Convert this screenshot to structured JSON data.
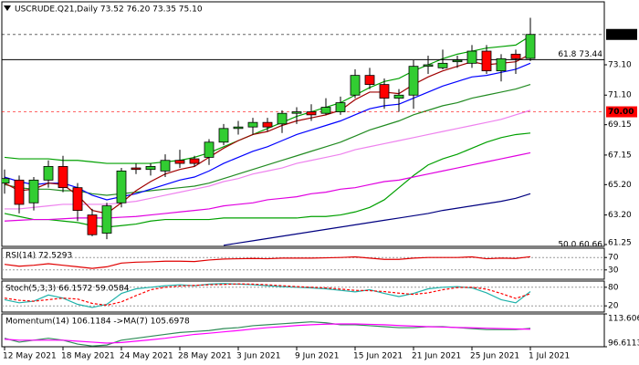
{
  "chart_data": [
    {
      "type": "candlestick",
      "title": "USCRUDE.Q21,Daily  73.52 76.20 73.35 75.10",
      "categories": [
        "12 May 2021",
        null,
        null,
        null,
        "18 May 2021",
        null,
        null,
        null,
        "24 May 2021",
        null,
        null,
        null,
        "28 May 2021",
        null,
        null,
        null,
        "3 Jun 2021",
        null,
        null,
        null,
        "9 Jun 2021",
        null,
        null,
        null,
        "15 Jun 2021",
        null,
        null,
        null,
        "21 Jun 2021",
        null,
        null,
        null,
        "25 Jun 2021",
        null,
        null,
        null,
        "1 Jul 2021"
      ],
      "open": [
        65.3,
        65.5,
        64.0,
        65.5,
        66.4,
        65.0,
        63.2,
        62.0,
        64.0,
        66.3,
        66.2,
        66.1,
        66.8,
        66.9,
        67.0,
        68.0,
        68.9,
        69.0,
        69.3,
        69.2,
        69.9,
        70.0,
        69.9,
        70.0,
        71.1,
        72.4,
        71.8,
        70.9,
        71.1,
        73.0,
        72.9,
        73.3,
        73.2,
        74.0,
        72.7,
        73.8,
        73.52
      ],
      "high": [
        66.2,
        65.8,
        65.7,
        66.8,
        67.1,
        65.3,
        63.6,
        64.0,
        66.3,
        66.6,
        66.6,
        67.2,
        67.5,
        67.1,
        68.2,
        69.2,
        69.4,
        69.6,
        69.6,
        70.1,
        70.3,
        70.5,
        70.9,
        71.0,
        72.8,
        72.9,
        72.2,
        71.5,
        73.4,
        73.7,
        74.1,
        73.7,
        74.4,
        74.4,
        73.8,
        74.1,
        76.2
      ],
      "low": [
        64.6,
        63.3,
        63.5,
        65.0,
        64.7,
        62.8,
        61.8,
        61.6,
        63.7,
        65.9,
        65.8,
        65.7,
        66.3,
        66.4,
        66.5,
        67.8,
        68.5,
        68.5,
        68.7,
        68.6,
        69.2,
        69.4,
        69.8,
        69.8,
        70.9,
        71.5,
        70.2,
        70.0,
        70.2,
        72.5,
        72.8,
        72.9,
        72.9,
        72.5,
        72.0,
        72.5,
        73.35
      ],
      "close": [
        65.6,
        63.9,
        65.5,
        66.4,
        65.0,
        63.5,
        61.9,
        63.8,
        66.1,
        66.2,
        66.4,
        66.8,
        66.6,
        66.6,
        68.0,
        68.9,
        69.0,
        69.3,
        69.0,
        69.9,
        70.0,
        69.8,
        70.3,
        70.6,
        72.4,
        71.8,
        70.9,
        71.1,
        73.0,
        73.1,
        73.2,
        73.4,
        74.0,
        72.7,
        73.5,
        73.5,
        75.1
      ],
      "up_color": "#32cd32",
      "down_color": "#ff0000",
      "series": [
        {
          "color": "#00a000",
          "values": [
            67.0,
            66.9,
            66.9,
            66.9,
            66.8,
            66.8,
            66.7,
            66.6,
            66.6,
            66.6,
            66.6,
            66.7,
            66.8,
            67.0,
            67.3,
            67.7,
            68.1,
            68.5,
            68.9,
            69.3,
            69.7,
            70.0,
            70.3,
            70.6,
            71.1,
            71.6,
            72.0,
            72.2,
            72.7,
            73.1,
            73.5,
            73.8,
            74.0,
            74.2,
            74.3,
            74.4,
            75.0
          ]
        },
        {
          "color": "#00a000",
          "values": [
            63.3,
            63.1,
            62.9,
            62.9,
            62.8,
            62.7,
            62.5,
            62.4,
            62.5,
            62.6,
            62.8,
            62.9,
            62.9,
            62.9,
            62.9,
            63.0,
            63.0,
            63.0,
            63.0,
            63.0,
            63.0,
            63.1,
            63.1,
            63.2,
            63.4,
            63.7,
            64.2,
            65.0,
            65.8,
            66.5,
            66.9,
            67.2,
            67.6,
            68.0,
            68.3,
            68.5,
            68.6
          ]
        },
        {
          "color": "#000080",
          "values": [
            null,
            null,
            null,
            null,
            null,
            null,
            null,
            null,
            null,
            null,
            null,
            null,
            null,
            null,
            null,
            61.2,
            61.35,
            61.5,
            61.65,
            61.8,
            61.95,
            62.1,
            62.25,
            62.4,
            62.55,
            62.7,
            62.85,
            63.0,
            63.15,
            63.3,
            63.5,
            63.65,
            63.8,
            63.95,
            64.1,
            64.3,
            64.6
          ]
        },
        {
          "color": "#e000e0",
          "values": [
            62.8,
            62.85,
            62.9,
            62.9,
            62.95,
            63.0,
            63.0,
            63.0,
            63.05,
            63.1,
            63.2,
            63.3,
            63.4,
            63.5,
            63.6,
            63.8,
            63.9,
            64.0,
            64.2,
            64.3,
            64.4,
            64.6,
            64.7,
            64.9,
            65.0,
            65.2,
            65.4,
            65.5,
            65.7,
            65.9,
            66.1,
            66.3,
            66.5,
            66.7,
            66.9,
            67.1,
            67.3
          ]
        },
        {
          "color": "#ee82ee",
          "values": [
            63.6,
            63.6,
            63.7,
            63.8,
            63.9,
            63.9,
            63.9,
            63.9,
            64.0,
            64.1,
            64.3,
            64.5,
            64.7,
            64.9,
            65.1,
            65.4,
            65.6,
            65.9,
            66.1,
            66.3,
            66.6,
            66.8,
            67.0,
            67.2,
            67.5,
            67.7,
            67.9,
            68.1,
            68.3,
            68.5,
            68.7,
            68.9,
            69.1,
            69.3,
            69.5,
            69.8,
            70.1
          ]
        },
        {
          "color": "#228b22",
          "values": [
            65.2,
            65.0,
            64.9,
            64.9,
            64.8,
            64.8,
            64.6,
            64.5,
            64.6,
            64.7,
            64.8,
            64.9,
            65.0,
            65.1,
            65.3,
            65.6,
            65.9,
            66.2,
            66.5,
            66.8,
            67.1,
            67.4,
            67.7,
            68.0,
            68.4,
            68.8,
            69.1,
            69.4,
            69.8,
            70.1,
            70.4,
            70.6,
            70.9,
            71.1,
            71.3,
            71.5,
            71.8
          ]
        },
        {
          "color": "#0000ff",
          "values": [
            65.7,
            65.4,
            65.2,
            65.3,
            65.3,
            65.0,
            64.5,
            64.2,
            64.4,
            64.6,
            64.9,
            65.2,
            65.5,
            65.7,
            66.1,
            66.6,
            67.0,
            67.4,
            67.7,
            68.1,
            68.5,
            68.8,
            69.1,
            69.4,
            69.8,
            70.2,
            70.4,
            70.5,
            70.9,
            71.3,
            71.7,
            72.0,
            72.3,
            72.4,
            72.6,
            72.8,
            73.2
          ]
        },
        {
          "color": "#a00000",
          "values": [
            65.3,
            64.8,
            64.9,
            65.3,
            65.2,
            64.5,
            63.5,
            63.3,
            64.0,
            64.8,
            65.4,
            65.9,
            66.2,
            66.4,
            67.0,
            67.6,
            68.1,
            68.5,
            68.7,
            69.1,
            69.4,
            69.6,
            69.8,
            70.1,
            70.8,
            71.3,
            71.3,
            71.2,
            71.8,
            72.3,
            72.7,
            73.0,
            73.3,
            73.1,
            73.2,
            73.3,
            73.8
          ]
        }
      ],
      "ylim": [
        61.13,
        77.25
      ],
      "yticks": [
        {
          "value": 73.1,
          "label": "73.10"
        },
        {
          "value": 71.1,
          "label": "71.10"
        },
        69.15,
        67.15,
        {
          "value": 65.2,
          "label": "65.20"
        },
        {
          "value": 63.2,
          "label": "63.20"
        },
        61.25
      ],
      "price_lines": [
        {
          "value": 75.1,
          "label": "75.10",
          "color": "#000000"
        },
        {
          "value": 70,
          "label": "70.00",
          "color": "#ff0000"
        }
      ],
      "fib_levels": [
        {
          "value": 73.44,
          "label": "61.8 73.44"
        },
        {
          "value": 60.66,
          "label": "50.0 60.66"
        }
      ]
    },
    {
      "type": "line",
      "title": "RSI(14) 72.5293",
      "ylim": [
        0,
        100
      ],
      "yticks": [
        70,
        30
      ],
      "series": [
        {
          "color": "#e00000",
          "values": [
            48,
            42,
            45,
            50,
            45,
            40,
            35,
            40,
            52,
            55,
            56,
            58,
            58,
            57,
            62,
            65,
            66,
            67,
            66,
            68,
            68,
            68,
            69,
            70,
            72,
            68,
            64,
            64,
            68,
            70,
            70,
            70,
            72,
            66,
            68,
            67,
            72.5293
          ]
        }
      ]
    },
    {
      "type": "line",
      "title": "Stoch(5,3,3) 66.1572 59.0584",
      "ylim": [
        0,
        100
      ],
      "yticks": [
        80,
        20
      ],
      "series": [
        {
          "color": "#20b2aa",
          "values": [
            40,
            30,
            35,
            55,
            45,
            25,
            15,
            25,
            60,
            75,
            80,
            85,
            88,
            85,
            90,
            92,
            90,
            88,
            85,
            82,
            80,
            78,
            75,
            70,
            65,
            72,
            60,
            50,
            60,
            75,
            80,
            82,
            78,
            62,
            40,
            30,
            66.1572
          ]
        },
        {
          "color": "#ff0000",
          "dashed": true,
          "values": [
            45,
            38,
            35,
            40,
            45,
            42,
            28,
            22,
            33,
            53,
            72,
            80,
            84,
            86,
            88,
            89,
            91,
            90,
            88,
            85,
            82,
            80,
            78,
            74,
            70,
            69,
            66,
            61,
            57,
            62,
            72,
            79,
            80,
            74,
            60,
            44,
            59.0584
          ]
        }
      ]
    },
    {
      "type": "line",
      "title": "Momentum(14) 106.1184 ->MA(7) 105.6978",
      "ylim": [
        96.6113,
        113.6063
      ],
      "yticks": [
        113.6063,
        96.6113
      ],
      "series": [
        {
          "color": "#2e8b57",
          "values": [
            101,
            99,
            100,
            101,
            100,
            98,
            97,
            97.5,
            100,
            101,
            102,
            103,
            104,
            104.5,
            105,
            106,
            106.5,
            107.5,
            108,
            108.5,
            109,
            109.5,
            109,
            108,
            108,
            107.5,
            107,
            106.5,
            106.5,
            107,
            107,
            106.5,
            106,
            105.5,
            105.5,
            105.5,
            106.1184
          ]
        },
        {
          "color": "#ff00ff",
          "values": [
            100.5,
            100,
            100,
            100,
            100,
            99.5,
            99,
            98.5,
            98.8,
            99.5,
            100.2,
            101,
            102,
            103,
            103.6,
            104.3,
            105,
            105.8,
            106.5,
            107,
            107.6,
            108,
            108.3,
            108.4,
            108.4,
            108.2,
            108,
            107.6,
            107.3,
            107,
            106.8,
            106.6,
            106.4,
            106.2,
            106,
            105.8,
            105.6978
          ]
        }
      ]
    }
  ]
}
